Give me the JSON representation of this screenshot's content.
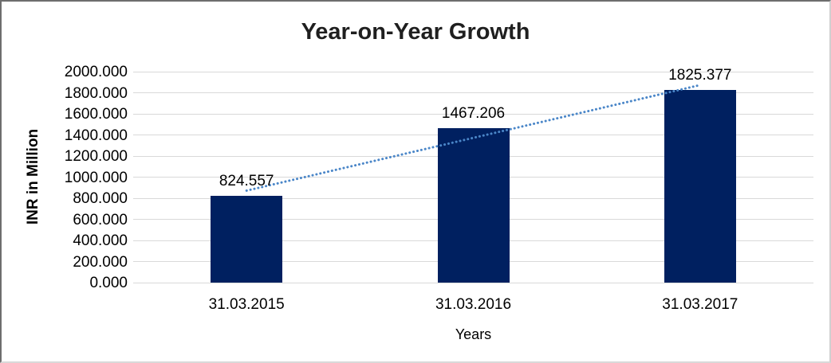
{
  "chart_data": {
    "type": "bar",
    "title": "Year-on-Year Growth",
    "xlabel": "Years",
    "ylabel": "INR in Million",
    "categories": [
      "31.03.2015",
      "31.03.2016",
      "31.03.2017"
    ],
    "values": [
      824.557,
      1467.206,
      1825.377
    ],
    "data_labels": [
      "824.557",
      "1467.206",
      "1825.377"
    ],
    "series_name": "INR in Million",
    "ylim": [
      0,
      2000
    ],
    "ytick_step": 200,
    "yticks": [
      "2000.000",
      "1800.000",
      "1600.000",
      "1400.000",
      "1200.000",
      "1000.000",
      "800.000",
      "600.000",
      "400.000",
      "200.000",
      "0.000"
    ],
    "grid": "horizontal",
    "legend": "none",
    "colors": {
      "bar": "#002060",
      "gridline": "#d9d9d9",
      "axis_line": "#d9d9d9",
      "trendline": "#4a86c8",
      "title_text": "#1f1f1f",
      "axis_text": "#000000"
    },
    "trendline": {
      "type": "linear",
      "style": "dotted"
    }
  }
}
